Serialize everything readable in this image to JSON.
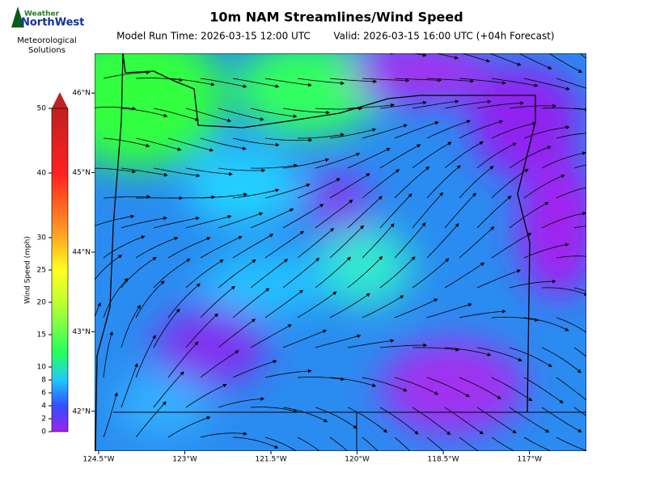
{
  "header": {
    "title": "10m NAM Streamlines/Wind Speed",
    "run": "Model Run Time: 2026-03-15 12:00 UTC",
    "valid": "Valid: 2026-03-15 16:00 UTC  (+04h Forecast)"
  },
  "logo": {
    "top": "Weather",
    "brand": "NorthWest",
    "tagline_1": "Meteorological",
    "tagline_2": "Solutions"
  },
  "colorbar": {
    "label": "Wind Speed (mph)",
    "lim": [
      0,
      50
    ],
    "ticks": [
      0,
      2,
      4,
      6,
      8,
      10,
      15,
      20,
      25,
      30,
      40,
      50
    ]
  },
  "map": {
    "xlim": [
      -124.57,
      -116.01
    ],
    "ylim": [
      41.5,
      46.5
    ],
    "xticks": [
      {
        "value": -124.5,
        "label": "124.5°W"
      },
      {
        "value": -123,
        "label": "123°W"
      },
      {
        "value": -121.5,
        "label": "121.5°W"
      },
      {
        "value": -120,
        "label": "120°W"
      },
      {
        "value": -118.5,
        "label": "118.5°W"
      },
      {
        "value": -117,
        "label": "117°W"
      }
    ],
    "yticks": [
      {
        "value": 46,
        "label": "46°N"
      },
      {
        "value": 45,
        "label": "45°N"
      },
      {
        "value": 44,
        "label": "44°N"
      },
      {
        "value": 43,
        "label": "43°N"
      },
      {
        "value": 42,
        "label": "42°N"
      }
    ]
  }
}
